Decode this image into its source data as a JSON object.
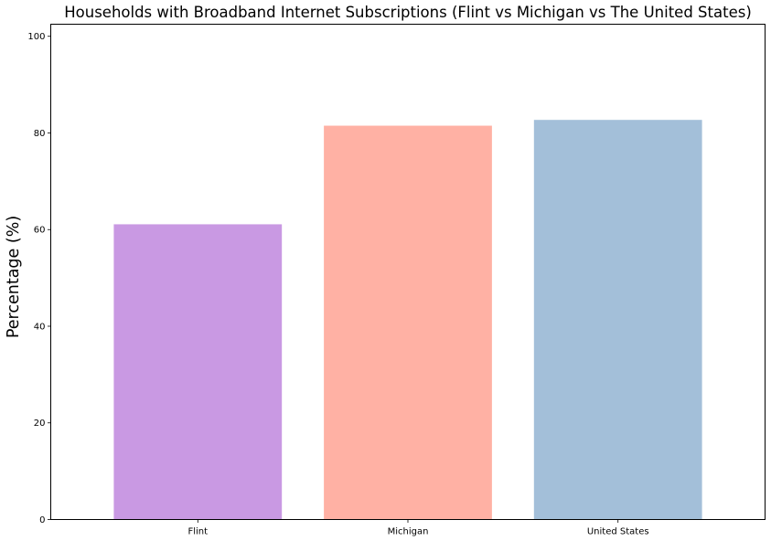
{
  "chart_data": {
    "type": "bar",
    "title": "Households with Broadband Internet Subscriptions (Flint vs Michigan vs The United States)",
    "xlabel": "",
    "ylabel": "Percentage (%)",
    "categories": [
      "Flint",
      "Michigan",
      "United States"
    ],
    "values": [
      61.1,
      81.5,
      82.7
    ],
    "colors": [
      "#c999e3",
      "#ffb1a4",
      "#a3bfd9"
    ],
    "ylim": [
      0,
      102.5
    ],
    "yticks": [
      0,
      20,
      40,
      60,
      80,
      100
    ],
    "grid": false,
    "legend": "none"
  }
}
